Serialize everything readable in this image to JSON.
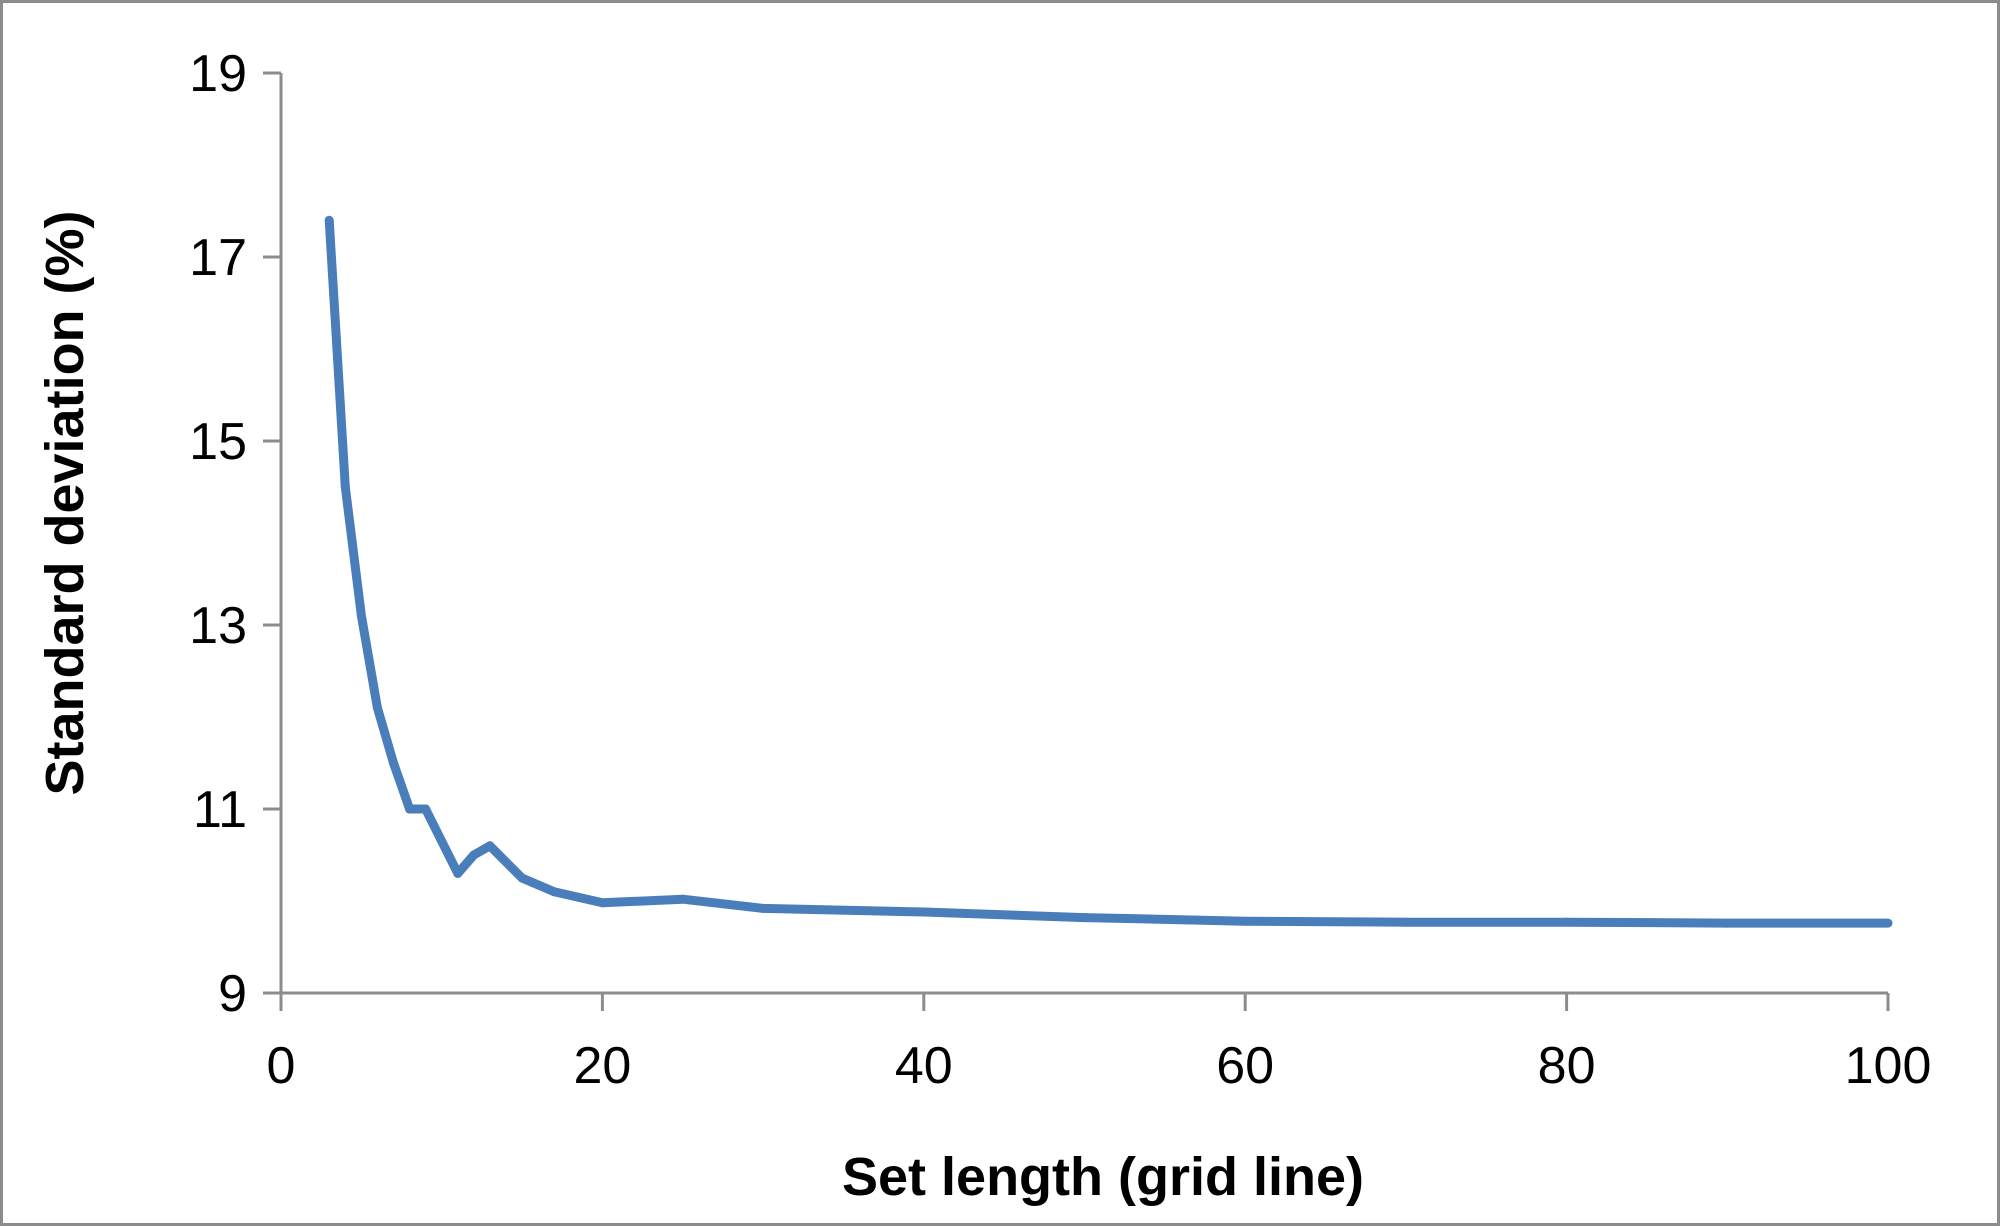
{
  "chart_data": {
    "type": "line",
    "title": "",
    "xlabel": "Set length (grid line)",
    "ylabel": "Standard deviation (%)",
    "xlim": [
      0,
      100
    ],
    "ylim": [
      9,
      19
    ],
    "xticks": [
      0,
      20,
      40,
      60,
      80,
      100
    ],
    "yticks": [
      9,
      11,
      13,
      15,
      17,
      19
    ],
    "grid": false,
    "legend": "none",
    "line_color": "#4a7ebb",
    "series": [
      {
        "x": [
          3,
          4,
          5,
          6,
          7,
          8,
          9,
          10,
          11,
          12,
          13,
          15,
          17,
          20,
          25,
          30,
          40,
          50,
          60,
          70,
          80,
          90,
          100
        ],
        "values": [
          17.4,
          14.5,
          13.1,
          12.1,
          11.5,
          11.0,
          11.0,
          10.65,
          10.3,
          10.5,
          10.6,
          10.25,
          10.1,
          9.98,
          10.02,
          9.92,
          9.88,
          9.82,
          9.78,
          9.77,
          9.77,
          9.76,
          9.76
        ]
      }
    ]
  }
}
